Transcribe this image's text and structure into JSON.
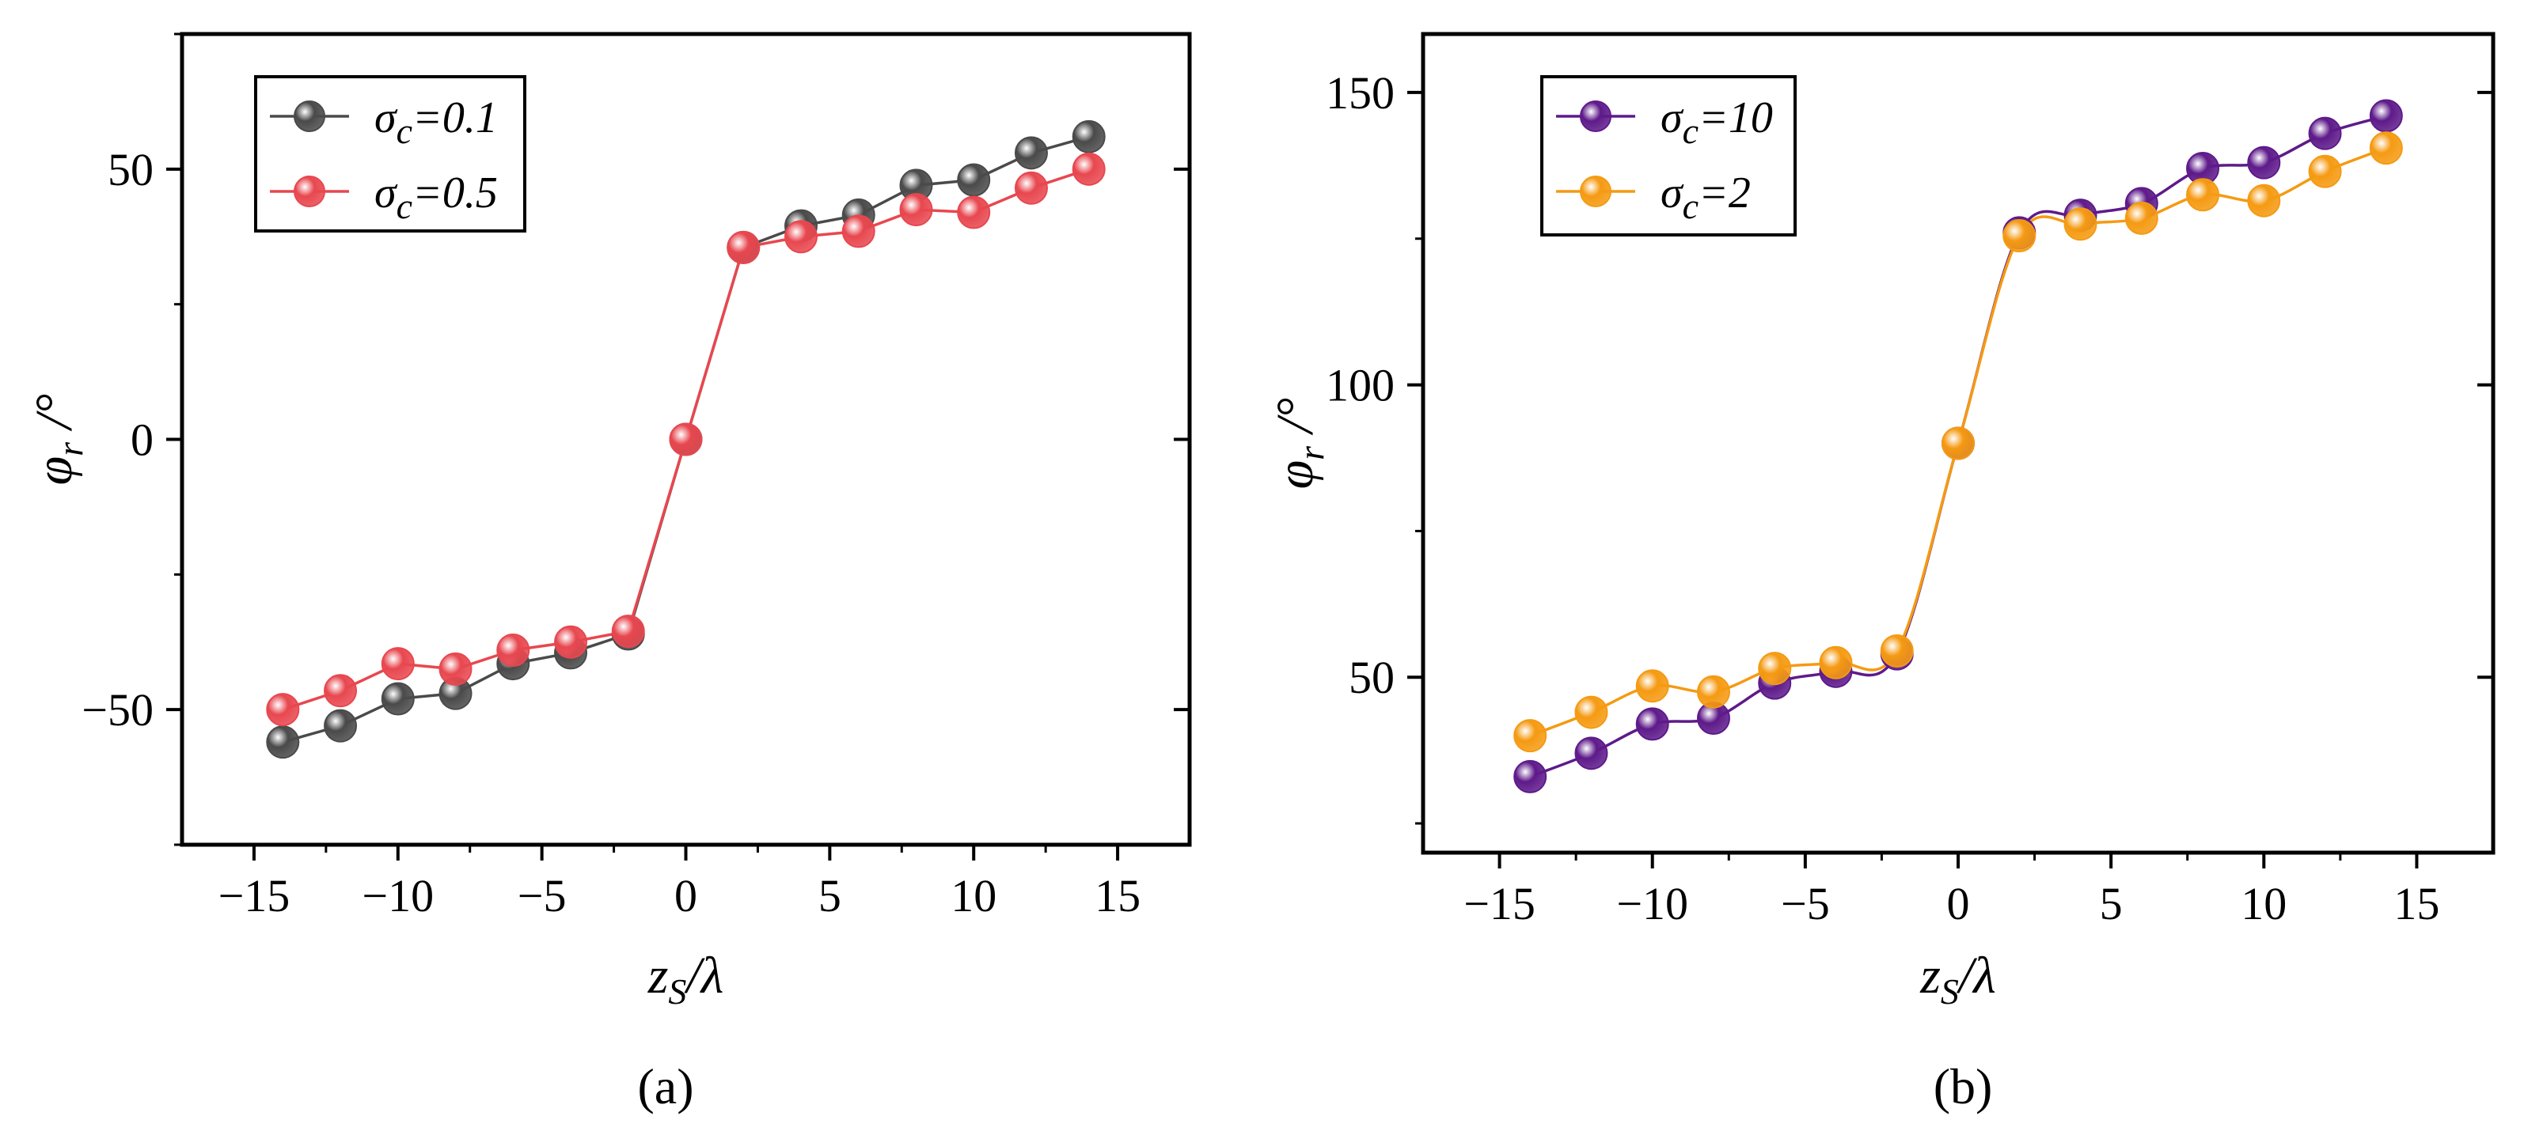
{
  "chart_data": [
    {
      "type": "line",
      "panel_label": "(a)",
      "x": [
        -14,
        -12,
        -10,
        -8,
        -6,
        -4,
        -2,
        0,
        2,
        4,
        6,
        8,
        10,
        12,
        14
      ],
      "xlim": [
        -17.5,
        17.5
      ],
      "ylim": [
        -75,
        75
      ],
      "xticks": [
        -15,
        -10,
        -5,
        0,
        5,
        10,
        15
      ],
      "yticks": [
        -50,
        0,
        50
      ],
      "xlabel": {
        "base": "z",
        "sub": "S",
        "tail": "/λ"
      },
      "ylabel": {
        "base": "φ",
        "sub": "r",
        "tail": " /°"
      },
      "legend_position": "top-left",
      "smooth": false,
      "series": [
        {
          "name": "σc=0.1",
          "label": {
            "base": "σ",
            "sub": "c",
            "tail": "=0.1"
          },
          "color": "#4a4a4a",
          "values": [
            -56,
            -53,
            -48,
            -47,
            -41.5,
            -39.5,
            -36,
            0,
            35.5,
            39.5,
            41.5,
            47,
            48,
            53,
            56
          ]
        },
        {
          "name": "σc=0.5",
          "label": {
            "base": "σ",
            "sub": "c",
            "tail": "=0.5"
          },
          "color": "#e8474f",
          "values": [
            -50,
            -46.5,
            -41.5,
            -42.5,
            -39,
            -37.5,
            -35.5,
            0,
            35.5,
            37.5,
            38.5,
            42.5,
            42,
            46.5,
            50
          ]
        }
      ]
    },
    {
      "type": "line",
      "panel_label": "(b)",
      "x": [
        -14,
        -12,
        -10,
        -8,
        -6,
        -4,
        -2,
        0,
        2,
        4,
        6,
        8,
        10,
        12,
        14
      ],
      "xlim": [
        -17.5,
        17.5
      ],
      "ylim": [
        20,
        160
      ],
      "xticks": [
        -15,
        -10,
        -5,
        0,
        5,
        10,
        15
      ],
      "yticks": [
        50,
        100,
        150
      ],
      "xlabel": {
        "base": "z",
        "sub": "S",
        "tail": "/λ"
      },
      "ylabel": {
        "base": "φ",
        "sub": "r",
        "tail": " /°"
      },
      "legend_position": "top-left",
      "smooth": true,
      "series": [
        {
          "name": "σc=10",
          "label": {
            "base": "σ",
            "sub": "c",
            "tail": "=10"
          },
          "color": "#5e1a8a",
          "values": [
            33,
            37,
            42,
            43,
            49,
            51,
            54,
            90,
            126,
            129,
            131,
            137,
            138,
            143,
            146
          ]
        },
        {
          "name": "σc=2",
          "label": {
            "base": "σ",
            "sub": "c",
            "tail": "=2"
          },
          "color": "#f59a12",
          "values": [
            40,
            44,
            48.5,
            47.5,
            51.5,
            52.5,
            54.5,
            90,
            125.5,
            127.5,
            128.5,
            132.5,
            131.5,
            136.5,
            140.5
          ]
        }
      ]
    }
  ]
}
